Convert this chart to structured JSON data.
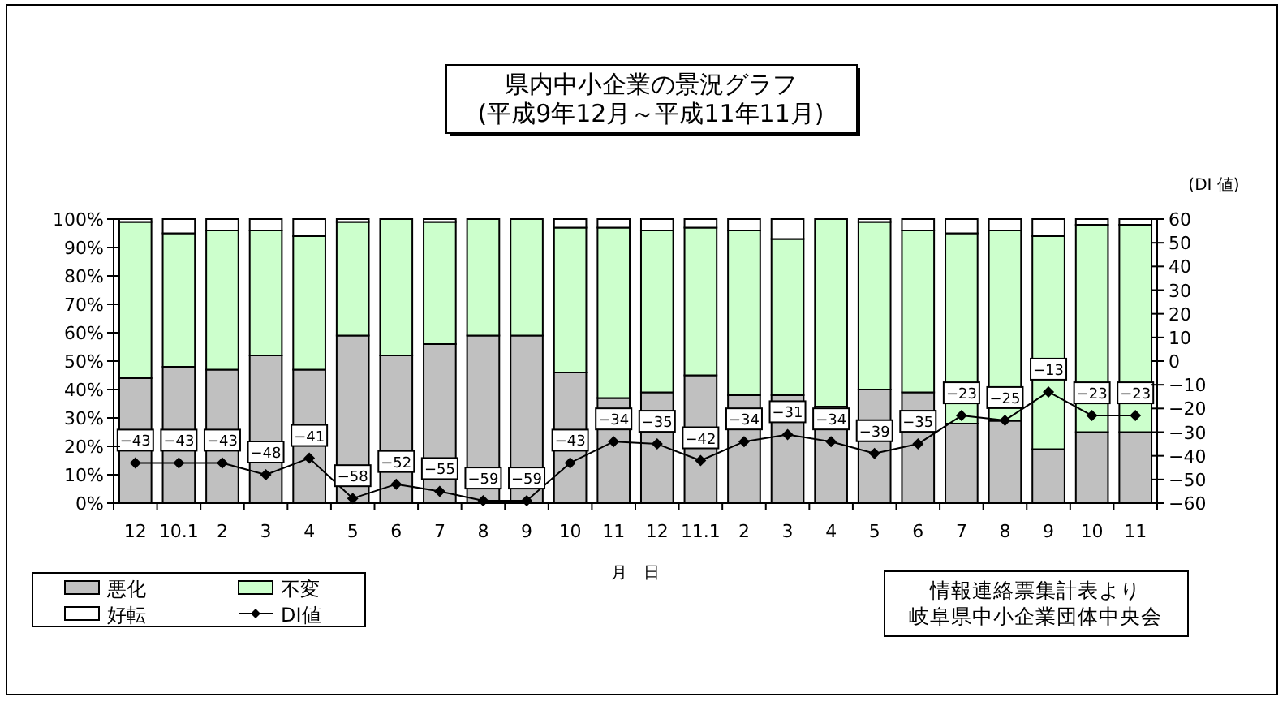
{
  "chart_data": {
    "type": "bar",
    "stacked": true,
    "title": "県内中小企業の景況グラフ\n(平成9年12月～平成11年11月)",
    "xlabel": "月　日",
    "y2label": "(DI 値)",
    "categories": [
      "12",
      "10.1",
      "2",
      "3",
      "4",
      "5",
      "6",
      "7",
      "8",
      "9",
      "10",
      "11",
      "12",
      "11.1",
      "2",
      "3",
      "4",
      "5",
      "6",
      "7",
      "8",
      "9",
      "10",
      "11"
    ],
    "series": [
      {
        "name": "悪化",
        "color": "#c0c0c0",
        "values": [
          44,
          48,
          47,
          52,
          47,
          59,
          52,
          56,
          59,
          59,
          46,
          37,
          39,
          45,
          38,
          38,
          34,
          40,
          39,
          28,
          29,
          19,
          25,
          25
        ]
      },
      {
        "name": "不変",
        "color": "#ccffcc",
        "values": [
          55,
          47,
          49,
          44,
          47,
          40,
          48,
          43,
          41,
          41,
          51,
          60,
          57,
          52,
          58,
          55,
          66,
          59,
          57,
          67,
          67,
          75,
          73,
          73
        ]
      },
      {
        "name": "好転",
        "color": "#ffffff",
        "values": [
          1,
          5,
          4,
          4,
          6,
          1,
          0,
          1,
          0,
          0,
          3,
          3,
          4,
          3,
          4,
          7,
          0,
          1,
          4,
          5,
          4,
          6,
          2,
          2
        ]
      },
      {
        "name": "DI値",
        "type": "line",
        "axis": "y2",
        "color": "#000000",
        "marker": "diamond",
        "data_labels": true,
        "values": [
          -43,
          -43,
          -43,
          -48,
          -41,
          -58,
          -52,
          -55,
          -59,
          -59,
          -43,
          -34,
          -35,
          -42,
          -34,
          -31,
          -34,
          -39,
          -35,
          -23,
          -25,
          -13,
          -23,
          -23
        ]
      }
    ],
    "ylim": [
      0,
      100
    ],
    "yticks": [
      {
        "value": 0,
        "label": "0%"
      },
      {
        "value": 10,
        "label": "10%"
      },
      {
        "value": 20,
        "label": "20%"
      },
      {
        "value": 30,
        "label": "30%"
      },
      {
        "value": 40,
        "label": "40%"
      },
      {
        "value": 50,
        "label": "50%"
      },
      {
        "value": 60,
        "label": "60%"
      },
      {
        "value": 70,
        "label": "70%"
      },
      {
        "value": 80,
        "label": "80%"
      },
      {
        "value": 90,
        "label": "90%"
      },
      {
        "value": 100,
        "label": "100%"
      }
    ],
    "y2lim": [
      -60,
      60
    ],
    "y2ticks": [
      -60,
      -50,
      -40,
      -30,
      -20,
      -10,
      0,
      10,
      20,
      30,
      40,
      50,
      60
    ],
    "legend": "bottom left",
    "annotations": [
      "情報連絡票集計表より",
      "岐阜県中小企業団体中央会"
    ]
  }
}
